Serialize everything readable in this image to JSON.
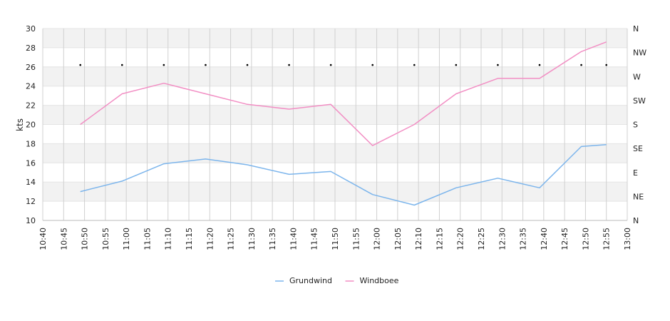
{
  "chart_data": {
    "type": "line",
    "ylabel": "kts",
    "ylim": [
      10,
      30
    ],
    "yticks": [
      10,
      12,
      14,
      16,
      18,
      20,
      22,
      24,
      26,
      28,
      30
    ],
    "xlim": [
      "10:40",
      "13:00"
    ],
    "xticks": [
      "10:40",
      "10:45",
      "10:50",
      "10:55",
      "11:00",
      "11:05",
      "11:10",
      "11:15",
      "11:20",
      "11:25",
      "11:30",
      "11:35",
      "11:40",
      "11:45",
      "11:50",
      "11:55",
      "12:00",
      "12:05",
      "12:10",
      "12:15",
      "12:20",
      "12:25",
      "12:30",
      "12:35",
      "12:40",
      "12:45",
      "12:50",
      "12:55",
      "13:00"
    ],
    "y2ticks": [
      "N",
      "NE",
      "E",
      "SE",
      "S",
      "SW",
      "W",
      "NW",
      "N"
    ],
    "grid": true,
    "legend_position": "bottom-center",
    "series": [
      {
        "name": "Grundwind",
        "color": "#7cb5ec",
        "x": [
          "10:49",
          "10:59",
          "11:09",
          "11:19",
          "11:29",
          "11:39",
          "11:49",
          "11:59",
          "12:09",
          "12:19",
          "12:29",
          "12:39",
          "12:49",
          "12:55"
        ],
        "values": [
          13.0,
          14.1,
          15.9,
          16.4,
          15.8,
          14.8,
          15.1,
          12.7,
          11.6,
          13.4,
          14.4,
          13.4,
          17.7,
          17.9
        ]
      },
      {
        "name": "Windboee",
        "color": "#f28fc4",
        "x": [
          "10:49",
          "10:59",
          "11:09",
          "11:19",
          "11:29",
          "11:39",
          "11:49",
          "11:59",
          "12:09",
          "12:19",
          "12:29",
          "12:39",
          "12:49",
          "12:55"
        ],
        "values": [
          20.0,
          23.2,
          24.3,
          23.2,
          22.1,
          21.6,
          22.1,
          17.8,
          20.0,
          23.2,
          24.8,
          24.8,
          27.6,
          28.6
        ]
      }
    ],
    "direction_markers": {
      "x": [
        "10:49",
        "10:59",
        "11:09",
        "11:19",
        "11:29",
        "11:39",
        "11:49",
        "11:59",
        "12:09",
        "12:19",
        "12:29",
        "12:39",
        "12:49",
        "12:55"
      ],
      "values": [
        26.2,
        26.2,
        26.2,
        26.2,
        26.2,
        26.2,
        26.2,
        26.2,
        26.2,
        26.2,
        26.2,
        26.2,
        26.2,
        26.2
      ],
      "color": "#000000"
    },
    "band_colors": [
      "#f2f2f2",
      "#ffffff"
    ],
    "grid_color": "#d0d0d0"
  }
}
